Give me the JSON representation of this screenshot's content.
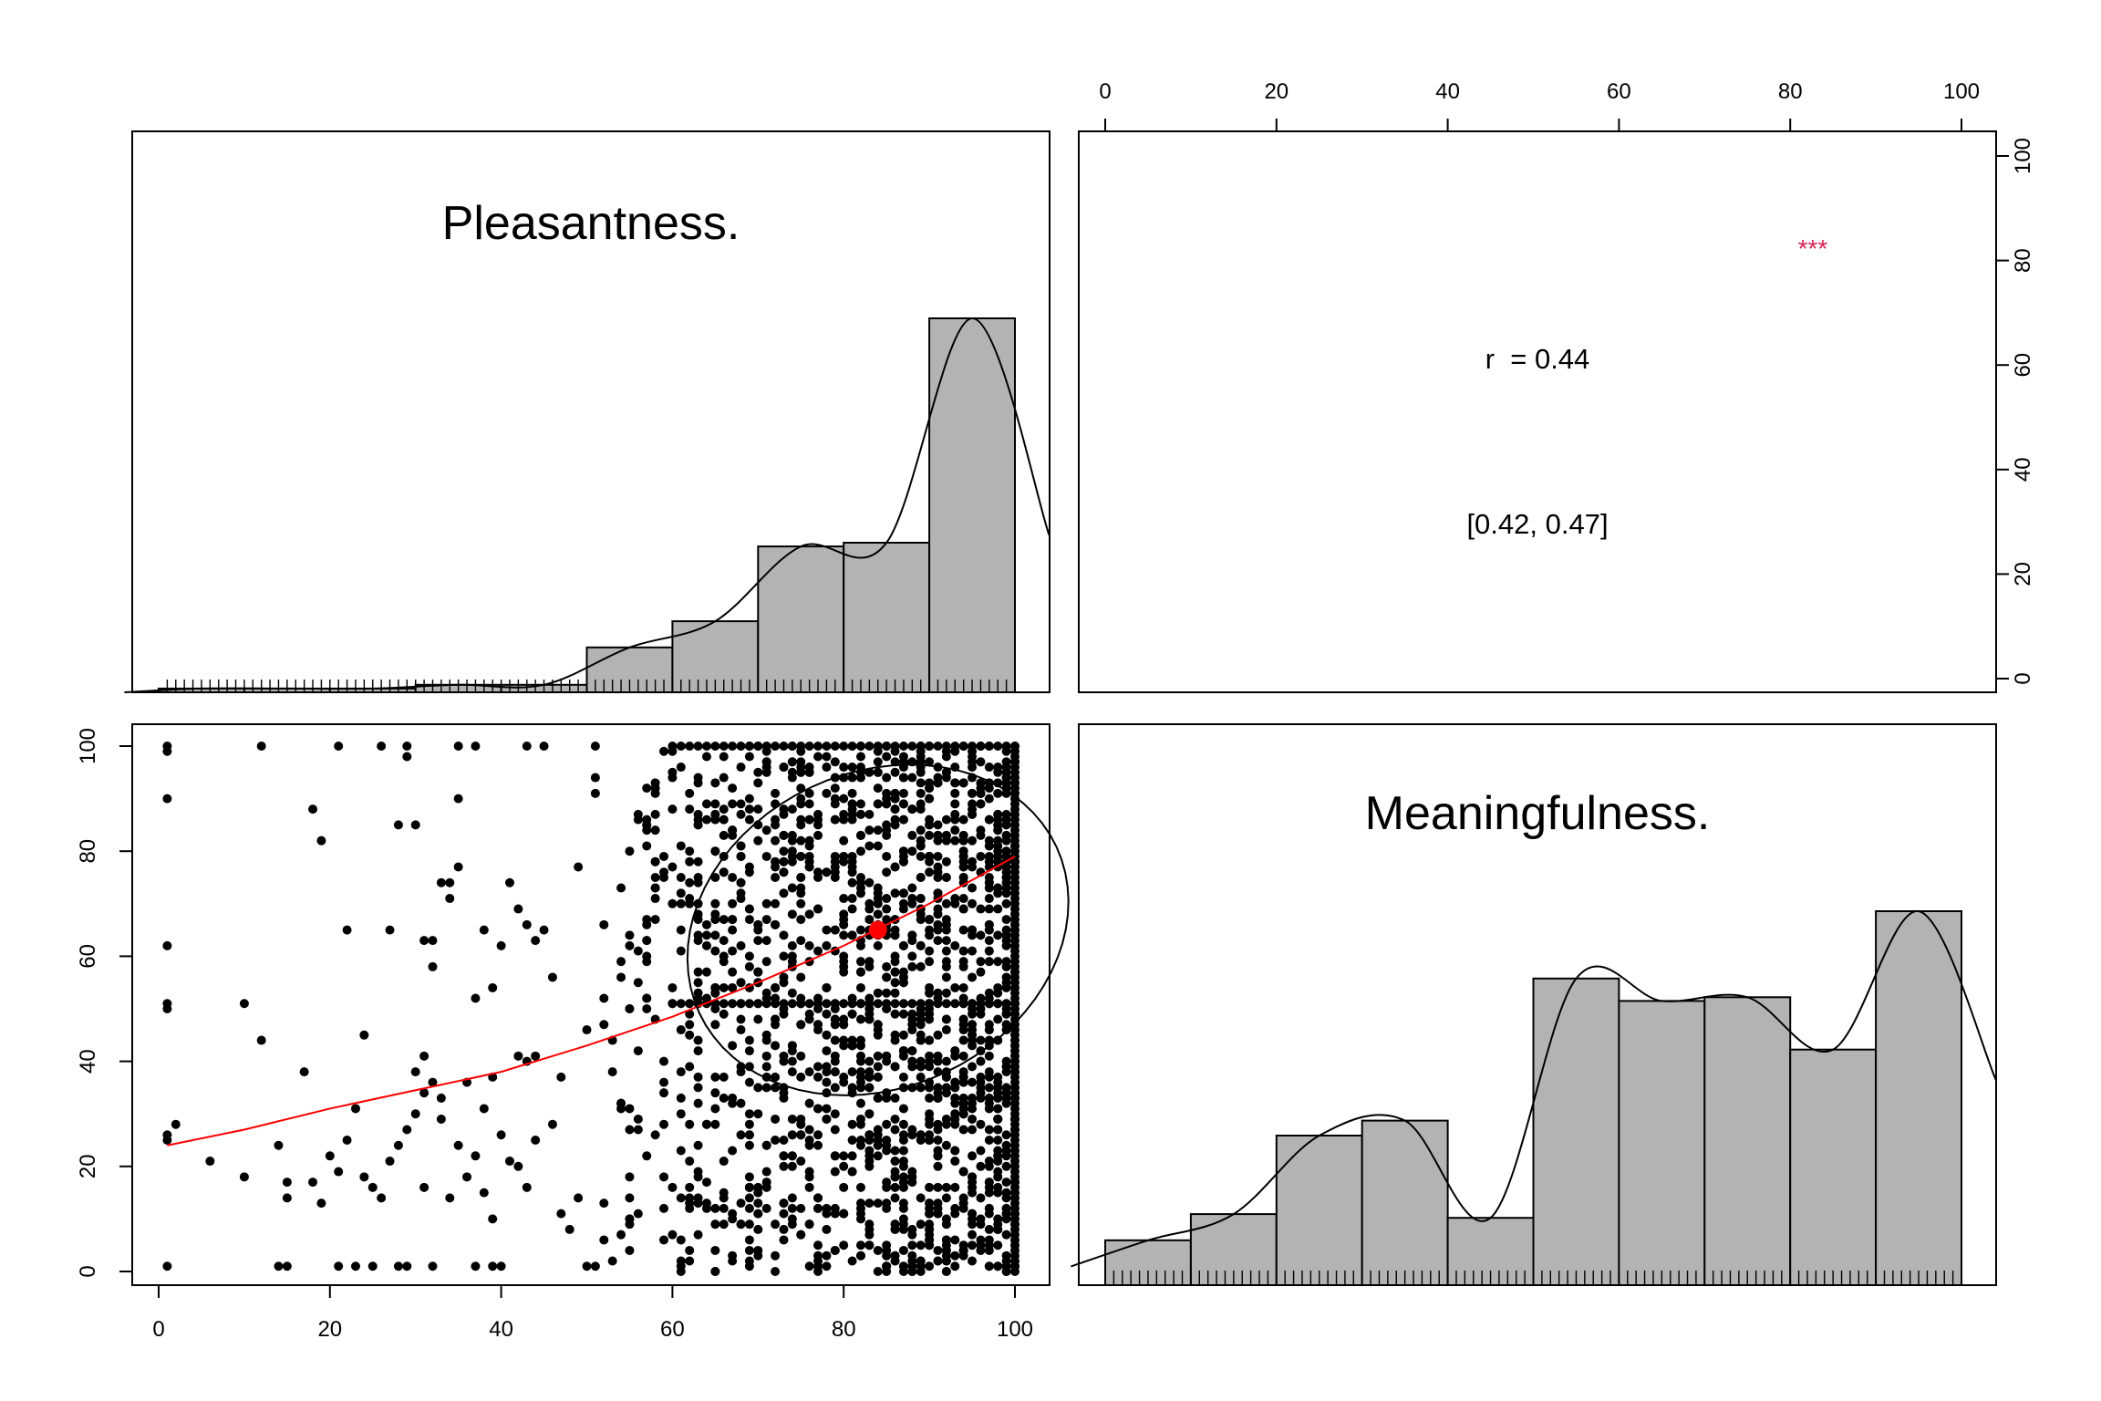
{
  "chart_data": [
    {
      "panel": "diagonal-top-left",
      "type": "bar",
      "title": "Pleasantness.",
      "bins": [
        [
          0,
          10
        ],
        [
          10,
          20
        ],
        [
          20,
          30
        ],
        [
          30,
          40
        ],
        [
          40,
          50
        ],
        [
          50,
          60
        ],
        [
          60,
          70
        ],
        [
          70,
          80
        ],
        [
          80,
          90
        ],
        [
          90,
          100
        ]
      ],
      "relative_heights": [
        0.01,
        0.01,
        0.01,
        0.02,
        0.02,
        0.12,
        0.19,
        0.39,
        0.4,
        1.0
      ],
      "density_curve": true,
      "rug": true,
      "xlim": [
        0,
        100
      ]
    },
    {
      "panel": "upper-right",
      "type": "table",
      "correlation_label": "r  = 0.44",
      "ci_label": "[0.42, 0.47]",
      "stars": "***",
      "stars_color": "#d62250",
      "top_axis_ticks": [
        "0",
        "20",
        "40",
        "60",
        "80",
        "100"
      ],
      "right_axis_ticks": [
        "0",
        "20",
        "40",
        "60",
        "80",
        "100"
      ]
    },
    {
      "panel": "lower-left",
      "type": "scatter",
      "xlabel": "",
      "ylabel": "",
      "xlim": [
        0,
        100
      ],
      "ylim": [
        0,
        100
      ],
      "x_ticks": [
        "0",
        "20",
        "40",
        "60",
        "80",
        "100"
      ],
      "y_ticks": [
        "0",
        "20",
        "40",
        "60",
        "80",
        "100"
      ],
      "points_description_sample": [
        [
          1,
          100
        ],
        [
          1,
          99
        ],
        [
          12,
          100
        ],
        [
          21,
          100
        ],
        [
          26,
          100
        ],
        [
          29,
          100
        ],
        [
          29,
          98
        ],
        [
          35,
          100
        ],
        [
          37,
          100
        ],
        [
          43,
          100
        ],
        [
          45,
          100
        ],
        [
          51,
          100
        ],
        [
          1,
          90
        ],
        [
          18,
          88
        ],
        [
          19,
          82
        ],
        [
          28,
          85
        ],
        [
          30,
          85
        ],
        [
          35,
          90
        ],
        [
          51,
          94
        ],
        [
          51,
          91
        ],
        [
          56,
          86
        ],
        [
          1,
          62
        ],
        [
          1,
          51
        ],
        [
          1,
          50
        ],
        [
          22,
          65
        ],
        [
          27,
          65
        ],
        [
          31,
          63
        ],
        [
          32,
          63
        ],
        [
          32,
          58
        ],
        [
          33,
          74
        ],
        [
          34,
          74
        ],
        [
          35,
          77
        ],
        [
          34,
          71
        ],
        [
          37,
          52
        ],
        [
          38,
          65
        ],
        [
          39,
          54
        ],
        [
          40,
          62
        ],
        [
          41,
          74
        ],
        [
          42,
          69
        ],
        [
          43,
          66
        ],
        [
          44,
          63
        ],
        [
          45,
          65
        ],
        [
          46,
          56
        ],
        [
          49,
          77
        ],
        [
          10,
          51
        ],
        [
          12,
          44
        ],
        [
          17,
          38
        ],
        [
          24,
          45
        ],
        [
          31,
          41
        ],
        [
          30,
          38
        ],
        [
          31,
          34
        ],
        [
          32,
          36
        ],
        [
          33,
          33
        ],
        [
          36,
          36
        ],
        [
          38,
          31
        ],
        [
          39,
          37
        ],
        [
          42,
          41
        ],
        [
          43,
          40
        ],
        [
          44,
          41
        ],
        [
          47,
          37
        ],
        [
          1,
          26
        ],
        [
          1,
          25
        ],
        [
          2,
          28
        ],
        [
          6,
          21
        ],
        [
          10,
          18
        ],
        [
          14,
          24
        ],
        [
          15,
          17
        ],
        [
          15,
          14
        ],
        [
          18,
          17
        ],
        [
          19,
          13
        ],
        [
          20,
          22
        ],
        [
          21,
          19
        ],
        [
          22,
          25
        ],
        [
          23,
          31
        ],
        [
          24,
          18
        ],
        [
          25,
          16
        ],
        [
          26,
          14
        ],
        [
          27,
          21
        ],
        [
          28,
          24
        ],
        [
          29,
          27
        ],
        [
          30,
          30
        ],
        [
          31,
          16
        ],
        [
          33,
          29
        ],
        [
          34,
          14
        ],
        [
          35,
          24
        ],
        [
          36,
          18
        ],
        [
          37,
          22
        ],
        [
          38,
          15
        ],
        [
          39,
          10
        ],
        [
          40,
          26
        ],
        [
          41,
          21
        ],
        [
          42,
          20
        ],
        [
          43,
          16
        ],
        [
          44,
          25
        ],
        [
          46,
          28
        ],
        [
          47,
          11
        ],
        [
          48,
          8
        ],
        [
          49,
          14
        ],
        [
          1,
          1
        ],
        [
          14,
          1
        ],
        [
          15,
          1
        ],
        [
          21,
          1
        ],
        [
          23,
          1
        ],
        [
          25,
          1
        ],
        [
          28,
          1
        ],
        [
          29,
          1
        ],
        [
          32,
          1
        ],
        [
          37,
          1
        ],
        [
          39,
          1
        ],
        [
          40,
          1
        ],
        [
          50,
          1
        ],
        [
          51,
          1
        ]
      ],
      "points_dense_region": {
        "x_range": [
          50,
          100
        ],
        "y_range": [
          0,
          100
        ],
        "note_count": 1600
      },
      "mean_point": [
        84,
        65
      ],
      "mean_point_color": "#ff0000",
      "loess_curve": [
        [
          1,
          24
        ],
        [
          10,
          27
        ],
        [
          20,
          31
        ],
        [
          30,
          34.5
        ],
        [
          40,
          38
        ],
        [
          50,
          43
        ],
        [
          60,
          48.5
        ],
        [
          70,
          55
        ],
        [
          80,
          62
        ],
        [
          90,
          70
        ],
        [
          100,
          79
        ]
      ],
      "loess_color": "#ff0000",
      "ellipse": {
        "center": [
          84,
          65
        ],
        "semi_x": 23,
        "semi_y": 30,
        "rotation_deg": -25
      }
    },
    {
      "panel": "diagonal-bottom-right",
      "type": "bar",
      "title": "Meaningfulness.",
      "bins": [
        [
          0,
          10
        ],
        [
          10,
          20
        ],
        [
          20,
          30
        ],
        [
          30,
          40
        ],
        [
          40,
          50
        ],
        [
          50,
          60
        ],
        [
          60,
          70
        ],
        [
          70,
          80
        ],
        [
          80,
          90
        ],
        [
          90,
          100
        ]
      ],
      "relative_heights": [
        0.12,
        0.19,
        0.4,
        0.44,
        0.18,
        0.82,
        0.76,
        0.77,
        0.63,
        1.0
      ],
      "density_curve": true,
      "rug": true,
      "xlim": [
        0,
        100
      ]
    }
  ],
  "colors": {
    "bar_fill": "#b3b3b3",
    "axis": "#000000",
    "points": "#000000",
    "accent_red": "#ff0000"
  }
}
